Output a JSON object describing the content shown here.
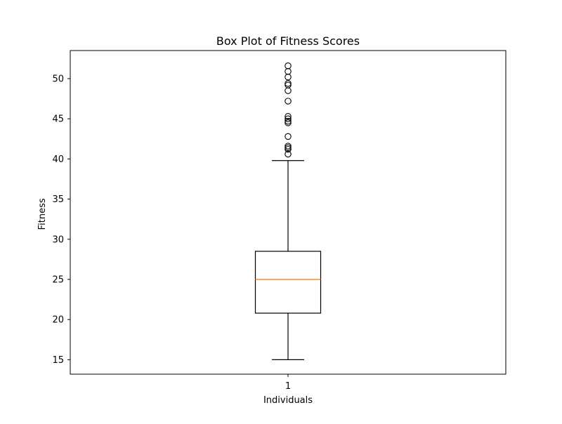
{
  "chart_data": {
    "type": "box",
    "title": "Box Plot of Fitness Scores",
    "xlabel": "Individuals",
    "ylabel": "Fitness",
    "categories": [
      "1"
    ],
    "ylim": [
      13.2,
      53.5
    ],
    "yticks": [
      15,
      20,
      25,
      30,
      35,
      40,
      45,
      50
    ],
    "box": {
      "whisker_low": 15.0,
      "q1": 20.8,
      "median": 25.0,
      "q3": 28.5,
      "whisker_high": 39.8
    },
    "outliers": [
      40.6,
      41.2,
      41.4,
      41.6,
      42.8,
      44.5,
      44.7,
      45.0,
      45.3,
      47.2,
      48.5,
      49.2,
      49.4,
      50.2,
      50.9,
      51.6
    ],
    "grid": false,
    "colors": {
      "median": "#ff7f0e",
      "box_edge": "#000000",
      "outlier_edge": "#000000"
    }
  }
}
